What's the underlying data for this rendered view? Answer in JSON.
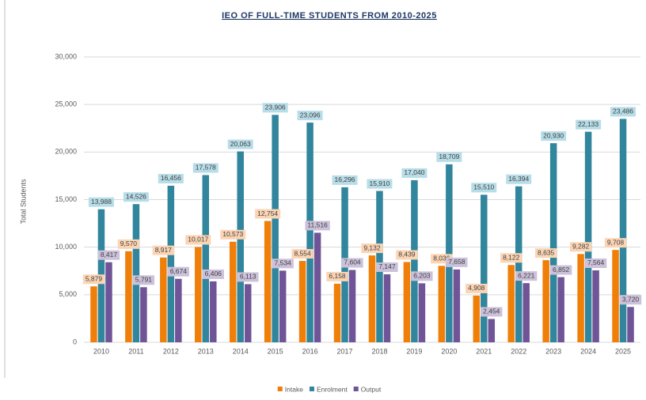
{
  "chart_data": {
    "type": "bar",
    "title": "IEO OF FULL-TIME STUDENTS FROM 2010-2025",
    "y_label": "Total Students",
    "categories": [
      "2010",
      "2011",
      "2012",
      "2013",
      "2014",
      "2015",
      "2016",
      "2017",
      "2018",
      "2019",
      "2020",
      "2021",
      "2022",
      "2023",
      "2024",
      "2025"
    ],
    "series": [
      {
        "name": "Intake",
        "color": "#f07f09",
        "label_color": "#fbd4b4",
        "values": [
          5879,
          9570,
          8917,
          10017,
          10573,
          12754,
          8554,
          6158,
          9132,
          8439,
          8036,
          4908,
          8122,
          8635,
          9282,
          9708
        ],
        "value_labels": [
          "5,879",
          "9,570",
          "8,917",
          "10,017",
          "10,573",
          "12,754",
          "8,554",
          "6,158",
          "9,132",
          "8,439",
          "8,036",
          "4,908",
          "8,122",
          "8,635",
          "9,282",
          "9,708"
        ]
      },
      {
        "name": "Enrolment",
        "color": "#31859c",
        "label_color": "#b7dde8",
        "values": [
          13988,
          14526,
          16456,
          17578,
          20063,
          23906,
          23096,
          16296,
          15910,
          17040,
          18709,
          15510,
          16394,
          20930,
          22133,
          23486
        ],
        "value_labels": [
          "13,988",
          "14,526",
          "16,456",
          "17,578",
          "20,063",
          "23,906",
          "23,096",
          "16,296",
          "15,910",
          "17,040",
          "18,709",
          "15,510",
          "16,394",
          "20,930",
          "22,133",
          "23,486"
        ]
      },
      {
        "name": "Output",
        "color": "#6f5597",
        "label_color": "#ccc1da",
        "values": [
          8417,
          5791,
          6674,
          6406,
          6113,
          7534,
          11516,
          7604,
          7147,
          6203,
          7658,
          2454,
          6221,
          6852,
          7564,
          3720
        ],
        "value_labels": [
          "8,417",
          "5,791",
          "6,674",
          "6,406",
          "6,113",
          "7,534",
          "11,516",
          "7,604",
          "7,147",
          "6,203",
          "7,658",
          "2,454",
          "6,221",
          "6,852",
          "7,564",
          "3,720"
        ]
      }
    ],
    "ylim": [
      0,
      30000
    ],
    "yticks": [
      0,
      {
        "value": 5000,
        "label": "5,000"
      },
      {
        "value": 10000,
        "label": "10,000"
      },
      {
        "value": 15000,
        "label": "15,000"
      },
      {
        "value": 20000,
        "label": "20,000"
      },
      {
        "value": 25000,
        "label": "25,000"
      },
      {
        "value": 30000,
        "label": "30,000"
      }
    ],
    "grid": true,
    "legend": "bottom"
  }
}
